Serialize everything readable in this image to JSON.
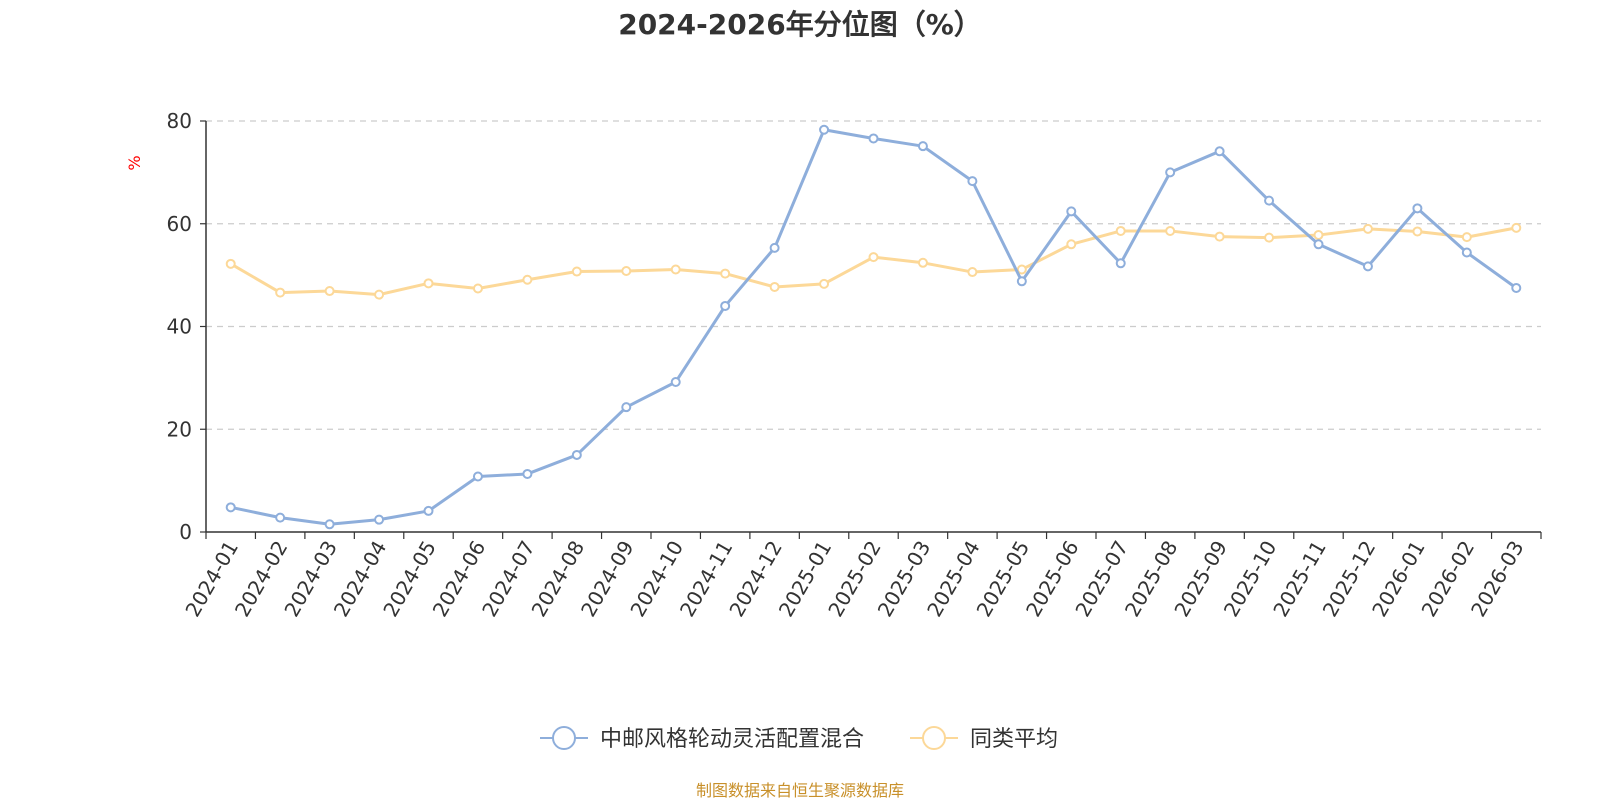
{
  "chart_data": {
    "type": "line",
    "title": "2024-2026年分位图（%）",
    "ylabel": "%",
    "ylim": [
      0,
      80
    ],
    "yticks": [
      0,
      20,
      40,
      60,
      80
    ],
    "grid": true,
    "legend_position": "bottom",
    "categories": [
      "2024-01",
      "2024-02",
      "2024-03",
      "2024-04",
      "2024-05",
      "2024-06",
      "2024-07",
      "2024-08",
      "2024-09",
      "2024-10",
      "2024-11",
      "2024-12",
      "2025-01",
      "2025-02",
      "2025-03",
      "2025-04",
      "2025-05",
      "2025-06",
      "2025-07",
      "2025-08",
      "2025-09",
      "2025-10",
      "2025-11",
      "2025-12",
      "2026-01",
      "2026-02",
      "2026-03"
    ],
    "series": [
      {
        "name": "中邮风格轮动灵活配置混合",
        "color": "#8eaedb",
        "values": [
          4.8,
          2.8,
          1.5,
          2.4,
          4.1,
          10.8,
          11.3,
          15.0,
          24.3,
          29.2,
          44.0,
          55.3,
          78.3,
          76.6,
          75.1,
          68.3,
          48.8,
          62.4,
          52.3,
          70.0,
          74.1,
          64.5,
          56.0,
          51.7,
          63.0,
          54.4,
          47.5
        ]
      },
      {
        "name": "同类平均",
        "color": "#fcd898",
        "values": [
          52.2,
          46.6,
          46.9,
          46.2,
          48.4,
          47.4,
          49.1,
          50.7,
          50.8,
          51.1,
          50.3,
          47.7,
          48.3,
          53.5,
          52.4,
          50.6,
          51.1,
          56.0,
          58.6,
          58.6,
          57.5,
          57.3,
          57.8,
          59.0,
          58.5,
          57.4,
          59.2
        ]
      }
    ],
    "source_text": "制图数据来自恒生聚源数据库",
    "source_color": "#c8902a",
    "ylabel_color": "#ff0000"
  }
}
